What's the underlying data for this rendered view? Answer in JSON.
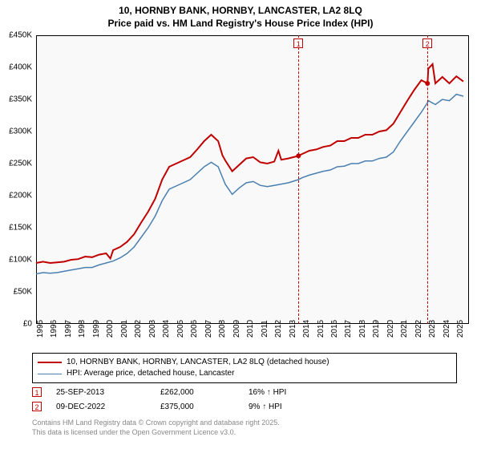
{
  "title": {
    "line1": "10, HORNBY BANK, HORNBY, LANCASTER, LA2 8LQ",
    "line2": "Price paid vs. HM Land Registry's House Price Index (HPI)"
  },
  "chart": {
    "type": "line",
    "background_color": "#f9f9f9",
    "border_color": "#000000",
    "ylim": [
      0,
      450000
    ],
    "ytick_step": 50000,
    "yticks": [
      "£0",
      "£50K",
      "£100K",
      "£150K",
      "£200K",
      "£250K",
      "£300K",
      "£350K",
      "£400K",
      "£450K"
    ],
    "xlim": [
      1995,
      2025.9
    ],
    "xticks": [
      1995,
      1996,
      1997,
      1998,
      1999,
      2000,
      2001,
      2002,
      2003,
      2004,
      2005,
      2006,
      2007,
      2008,
      2009,
      2010,
      2011,
      2012,
      2013,
      2014,
      2015,
      2016,
      2017,
      2018,
      2019,
      2020,
      2021,
      2022,
      2023,
      2024,
      2025
    ],
    "label_fontsize": 10,
    "title_fontsize": 12,
    "series": [
      {
        "name": "price_paid",
        "color": "#c00000",
        "line_width": 2,
        "legend": "10, HORNBY BANK, HORNBY, LANCASTER, LA2 8LQ (detached house)",
        "points": [
          [
            1995,
            95000
          ],
          [
            1995.5,
            97000
          ],
          [
            1996,
            95000
          ],
          [
            1996.5,
            96000
          ],
          [
            1997,
            97000
          ],
          [
            1997.5,
            100000
          ],
          [
            1998,
            101000
          ],
          [
            1998.5,
            105000
          ],
          [
            1999,
            104000
          ],
          [
            1999.5,
            108000
          ],
          [
            2000,
            110000
          ],
          [
            2000.3,
            102000
          ],
          [
            2000.5,
            115000
          ],
          [
            2001,
            120000
          ],
          [
            2001.5,
            128000
          ],
          [
            2002,
            140000
          ],
          [
            2002.5,
            158000
          ],
          [
            2003,
            175000
          ],
          [
            2003.5,
            195000
          ],
          [
            2004,
            225000
          ],
          [
            2004.5,
            245000
          ],
          [
            2005,
            250000
          ],
          [
            2005.5,
            255000
          ],
          [
            2006,
            260000
          ],
          [
            2006.5,
            272000
          ],
          [
            2007,
            285000
          ],
          [
            2007.5,
            295000
          ],
          [
            2008,
            285000
          ],
          [
            2008.3,
            263000
          ],
          [
            2008.5,
            255000
          ],
          [
            2009,
            238000
          ],
          [
            2009.5,
            248000
          ],
          [
            2010,
            258000
          ],
          [
            2010.5,
            260000
          ],
          [
            2011,
            252000
          ],
          [
            2011.5,
            250000
          ],
          [
            2012,
            253000
          ],
          [
            2012.3,
            270000
          ],
          [
            2012.5,
            256000
          ],
          [
            2013,
            258000
          ],
          [
            2013.73,
            262000
          ],
          [
            2014,
            265000
          ],
          [
            2014.5,
            270000
          ],
          [
            2015,
            272000
          ],
          [
            2015.5,
            276000
          ],
          [
            2016,
            278000
          ],
          [
            2016.5,
            285000
          ],
          [
            2017,
            285000
          ],
          [
            2017.5,
            290000
          ],
          [
            2018,
            290000
          ],
          [
            2018.5,
            295000
          ],
          [
            2019,
            295000
          ],
          [
            2019.5,
            300000
          ],
          [
            2020,
            302000
          ],
          [
            2020.5,
            312000
          ],
          [
            2021,
            330000
          ],
          [
            2021.5,
            348000
          ],
          [
            2022,
            365000
          ],
          [
            2022.5,
            380000
          ],
          [
            2022.94,
            375000
          ],
          [
            2023,
            398000
          ],
          [
            2023.3,
            405000
          ],
          [
            2023.5,
            375000
          ],
          [
            2024,
            385000
          ],
          [
            2024.5,
            375000
          ],
          [
            2025,
            386000
          ],
          [
            2025.5,
            378000
          ]
        ]
      },
      {
        "name": "hpi",
        "color": "#4a7fb0",
        "line_width": 1.5,
        "legend": "HPI: Average price, detached house, Lancaster",
        "points": [
          [
            1995,
            78000
          ],
          [
            1995.5,
            80000
          ],
          [
            1996,
            79000
          ],
          [
            1996.5,
            80000
          ],
          [
            1997,
            82000
          ],
          [
            1997.5,
            84000
          ],
          [
            1998,
            86000
          ],
          [
            1998.5,
            88000
          ],
          [
            1999,
            88000
          ],
          [
            1999.5,
            92000
          ],
          [
            2000,
            95000
          ],
          [
            2000.5,
            98000
          ],
          [
            2001,
            103000
          ],
          [
            2001.5,
            110000
          ],
          [
            2002,
            120000
          ],
          [
            2002.5,
            135000
          ],
          [
            2003,
            150000
          ],
          [
            2003.5,
            168000
          ],
          [
            2004,
            192000
          ],
          [
            2004.5,
            210000
          ],
          [
            2005,
            215000
          ],
          [
            2005.5,
            220000
          ],
          [
            2006,
            225000
          ],
          [
            2006.5,
            235000
          ],
          [
            2007,
            245000
          ],
          [
            2007.5,
            252000
          ],
          [
            2008,
            245000
          ],
          [
            2008.5,
            218000
          ],
          [
            2009,
            202000
          ],
          [
            2009.5,
            212000
          ],
          [
            2010,
            220000
          ],
          [
            2010.5,
            222000
          ],
          [
            2011,
            216000
          ],
          [
            2011.5,
            214000
          ],
          [
            2012,
            216000
          ],
          [
            2012.5,
            218000
          ],
          [
            2013,
            220000
          ],
          [
            2013.73,
            225000
          ],
          [
            2014,
            228000
          ],
          [
            2014.5,
            232000
          ],
          [
            2015,
            235000
          ],
          [
            2015.5,
            238000
          ],
          [
            2016,
            240000
          ],
          [
            2016.5,
            245000
          ],
          [
            2017,
            246000
          ],
          [
            2017.5,
            250000
          ],
          [
            2018,
            250000
          ],
          [
            2018.5,
            254000
          ],
          [
            2019,
            254000
          ],
          [
            2019.5,
            258000
          ],
          [
            2020,
            260000
          ],
          [
            2020.5,
            268000
          ],
          [
            2021,
            285000
          ],
          [
            2021.5,
            300000
          ],
          [
            2022,
            315000
          ],
          [
            2022.5,
            330000
          ],
          [
            2022.94,
            345000
          ],
          [
            2023,
            348000
          ],
          [
            2023.5,
            342000
          ],
          [
            2024,
            350000
          ],
          [
            2024.5,
            348000
          ],
          [
            2025,
            358000
          ],
          [
            2025.5,
            355000
          ]
        ]
      }
    ],
    "sales": [
      {
        "num": "1",
        "x": 2013.73,
        "date": "25-SEP-2013",
        "price": "£262,000",
        "pct": "16%",
        "dir": "↑",
        "vs": "HPI"
      },
      {
        "num": "2",
        "x": 2022.94,
        "date": "09-DEC-2022",
        "price": "£375,000",
        "pct": "9%",
        "dir": "↑",
        "vs": "HPI"
      }
    ]
  },
  "footnote": {
    "line1": "Contains HM Land Registry data © Crown copyright and database right 2025.",
    "line2": "This data is licensed under the Open Government Licence v3.0."
  }
}
